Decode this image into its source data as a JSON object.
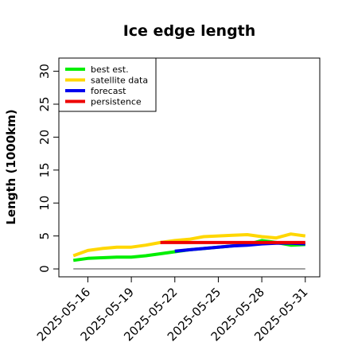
{
  "chart_data": {
    "type": "line",
    "title": "Ice edge length",
    "xlabel": "",
    "ylabel": "Length (1000km)",
    "ylim": [
      -1.2,
      32
    ],
    "yticks": [
      0,
      5,
      10,
      15,
      20,
      25,
      30
    ],
    "xlim": [
      "2025-05-14",
      "2025-06-01"
    ],
    "xticks": [
      "2025-05-16",
      "2025-05-19",
      "2025-05-22",
      "2025-05-25",
      "2025-05-28",
      "2025-05-31"
    ],
    "highlighted_xtick": "2025-05-22",
    "highlight_color": "#228B22",
    "grid": false,
    "legend_position": "top-left",
    "baseline": {
      "y": 0,
      "from": "2025-05-15",
      "to": "2025-05-31",
      "color": "#808080"
    },
    "series": [
      {
        "name": "best est.",
        "color": "#00EE00",
        "x": [
          "2025-05-15",
          "2025-05-16",
          "2025-05-17",
          "2025-05-18",
          "2025-05-19",
          "2025-05-20",
          "2025-05-21",
          "2025-05-22",
          "2025-05-23",
          "2025-05-24",
          "2025-05-25",
          "2025-05-26",
          "2025-05-27",
          "2025-05-28",
          "2025-05-29",
          "2025-05-30",
          "2025-05-31"
        ],
        "values": [
          1.3,
          1.6,
          1.7,
          1.8,
          1.8,
          2.0,
          2.3,
          2.6,
          2.9,
          3.1,
          3.3,
          3.5,
          3.7,
          4.3,
          4.0,
          3.6,
          3.7
        ]
      },
      {
        "name": "satellite data",
        "color": "#FFD700",
        "x": [
          "2025-05-15",
          "2025-05-16",
          "2025-05-17",
          "2025-05-18",
          "2025-05-19",
          "2025-05-20",
          "2025-05-21",
          "2025-05-22",
          "2025-05-23",
          "2025-05-24",
          "2025-05-25",
          "2025-05-26",
          "2025-05-27",
          "2025-05-28",
          "2025-05-29",
          "2025-05-30",
          "2025-05-31"
        ],
        "values": [
          2.0,
          2.8,
          3.1,
          3.3,
          3.3,
          3.6,
          4.0,
          4.3,
          4.5,
          4.9,
          5.0,
          5.1,
          5.2,
          4.9,
          4.7,
          5.3,
          5.0
        ]
      },
      {
        "name": "forecast",
        "color": "#0000EE",
        "x": [
          "2025-05-22",
          "2025-05-23",
          "2025-05-24",
          "2025-05-25",
          "2025-05-26",
          "2025-05-27",
          "2025-05-28",
          "2025-05-29",
          "2025-05-30",
          "2025-05-31"
        ],
        "values": [
          2.7,
          2.9,
          3.1,
          3.3,
          3.5,
          3.6,
          3.8,
          3.9,
          3.9,
          3.8
        ]
      },
      {
        "name": "persistence",
        "color": "#EE0000",
        "x": [
          "2025-05-21",
          "2025-05-31"
        ],
        "values": [
          4.0,
          4.0
        ]
      }
    ]
  }
}
